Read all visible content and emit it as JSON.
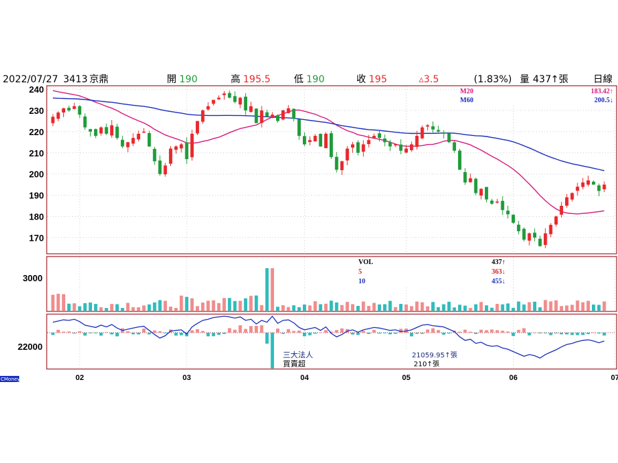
{
  "header": {
    "date": "2022/07/27",
    "code": "3413",
    "name": "京鼎",
    "open_label": "開",
    "open": "190",
    "high_label": "高",
    "high": "195.5",
    "low_label": "低",
    "low": "190",
    "close_label": "收",
    "close": "195",
    "change": "▵3.5",
    "change_pct": "(1.83%)",
    "volume_label": "量",
    "volume": "437",
    "volume_unit": "↑張",
    "period": "日線"
  },
  "colors": {
    "up": "#e8282c",
    "down": "#1f9b3a",
    "ma20": "#d81b7f",
    "ma60": "#1c2fbd",
    "vol_up": "#f08c8c",
    "vol_down": "#2fbcbc",
    "frame": "#a0222a",
    "navy": "#1a2a7a"
  },
  "watermark": "CMoney",
  "chart_data": [
    {
      "type": "candlestick",
      "ylim": [
        163,
        241
      ],
      "yticks": [
        240,
        230,
        220,
        210,
        200,
        190,
        180,
        170
      ],
      "legend": [
        {
          "name": "M20",
          "value": "183.42↑"
        },
        {
          "name": "M60",
          "value": "200.5↓"
        }
      ],
      "closes": [
        227,
        229,
        231,
        230,
        232,
        228,
        222,
        220,
        218,
        222,
        219,
        223,
        217,
        213,
        215,
        217,
        219,
        220,
        213,
        206,
        200,
        204,
        212,
        213,
        214,
        207,
        219,
        225,
        230,
        232,
        235,
        236,
        238,
        236,
        234,
        236,
        230,
        232,
        224,
        230,
        227,
        228,
        225,
        230,
        231,
        226,
        218,
        214,
        216,
        218,
        213,
        219,
        208,
        202,
        206,
        212,
        214,
        210,
        214,
        216,
        218,
        217,
        215,
        213,
        214,
        211,
        212,
        214,
        218,
        222,
        223,
        221,
        220,
        219,
        215,
        211,
        202,
        196,
        198,
        191,
        193,
        188,
        186,
        187,
        183,
        181,
        177,
        173,
        169,
        172,
        170,
        166,
        172,
        176,
        180,
        185,
        189,
        191,
        194,
        196,
        197,
        195,
        192,
        195
      ]
    },
    {
      "type": "bar",
      "legend": [
        {
          "name": "VOL",
          "value": "437↑"
        },
        {
          "name": "5",
          "value": "363↓"
        },
        {
          "name": "10",
          "value": "455↓"
        }
      ],
      "ytick": "3000"
    },
    {
      "type": "bar",
      "legend": [
        {
          "name": "三大法人",
          "value": "21059.95↑張"
        },
        {
          "name": "買賣超",
          "value": "210↑張"
        }
      ],
      "ytick": "22000"
    }
  ],
  "xticks": [
    {
      "label": "02",
      "i": 5
    },
    {
      "label": "03",
      "i": 25
    },
    {
      "label": "04",
      "i": 47
    },
    {
      "label": "05",
      "i": 66
    },
    {
      "label": "06",
      "i": 86
    },
    {
      "label": "07",
      "i": 105
    }
  ]
}
